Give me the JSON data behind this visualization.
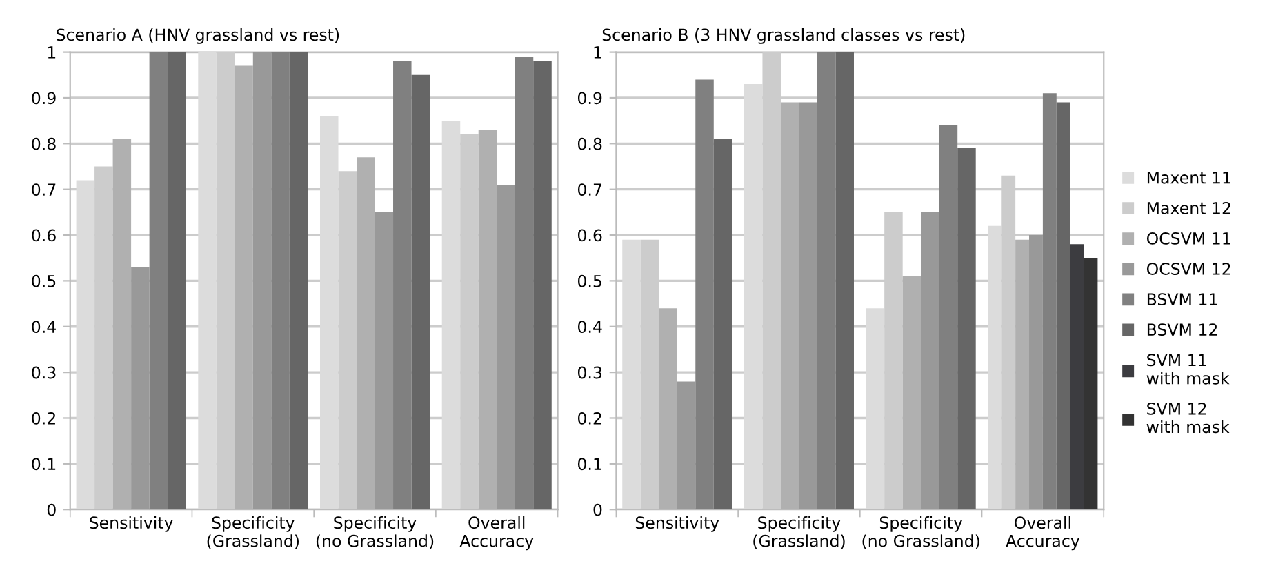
{
  "chart_data": [
    {
      "type": "bar",
      "title": "Scenario A (HNV grassland vs rest)",
      "categories": [
        "Sensitivity",
        "Specificity\n(Grassland)",
        "Specificity\n(no Grassland)",
        "Overall\nAccuracy"
      ],
      "ylim": [
        0,
        1
      ],
      "yticks": [
        0,
        0.1,
        0.2,
        0.3,
        0.4,
        0.5,
        0.6,
        0.7,
        0.8,
        0.9,
        1
      ],
      "grid": "y",
      "series": [
        {
          "color": "#dcdcdc",
          "values": [
            0.72,
            1,
            0.86,
            0.85
          ]
        },
        {
          "color": "#cccccc",
          "values": [
            0.75,
            1,
            0.74,
            0.82
          ]
        },
        {
          "color": "#b0b0b0",
          "values": [
            0.81,
            0.97,
            0.77,
            0.83
          ]
        },
        {
          "color": "#999999",
          "values": [
            0.53,
            1,
            0.65,
            0.71
          ]
        },
        {
          "color": "#808080",
          "values": [
            1,
            1,
            0.98,
            0.99
          ]
        },
        {
          "color": "#666666",
          "values": [
            1,
            1,
            0.95,
            0.98
          ]
        }
      ]
    },
    {
      "type": "bar",
      "title": "Scenario B (3 HNV grassland classes vs rest)",
      "categories": [
        "Sensitivity",
        "Specificity\n(Grassland)",
        "Specificity\n(no Grassland)",
        "Overall\nAccuracy"
      ],
      "ylim": [
        0,
        1
      ],
      "yticks": [
        0,
        0.1,
        0.2,
        0.3,
        0.4,
        0.5,
        0.6,
        0.7,
        0.8,
        0.9,
        1
      ],
      "grid": "y",
      "legend": "right",
      "series": [
        {
          "name": "Maxent 11",
          "color": "#dcdcdc",
          "values": [
            0.59,
            0.93,
            0.44,
            0.62
          ]
        },
        {
          "name": "Maxent 12",
          "color": "#cccccc",
          "values": [
            0.59,
            1,
            0.65,
            0.73
          ]
        },
        {
          "name": "OCSVM 11",
          "color": "#b0b0b0",
          "values": [
            0.44,
            0.89,
            0.51,
            0.59
          ]
        },
        {
          "name": "OCSVM 12",
          "color": "#999999",
          "values": [
            0.28,
            0.89,
            0.65,
            0.6
          ]
        },
        {
          "name": "BSVM 11",
          "color": "#808080",
          "values": [
            0.94,
            1,
            0.84,
            0.91
          ]
        },
        {
          "name": "BSVM 12",
          "color": "#666666",
          "values": [
            0.81,
            1,
            0.79,
            0.89
          ]
        },
        {
          "name": "SVM 11\nwith mask",
          "color": "#3c3c40",
          "values": [
            null,
            null,
            null,
            0.58
          ]
        },
        {
          "name": "SVM 12\nwith mask",
          "color": "#333333",
          "values": [
            null,
            null,
            null,
            0.55
          ]
        }
      ]
    }
  ]
}
